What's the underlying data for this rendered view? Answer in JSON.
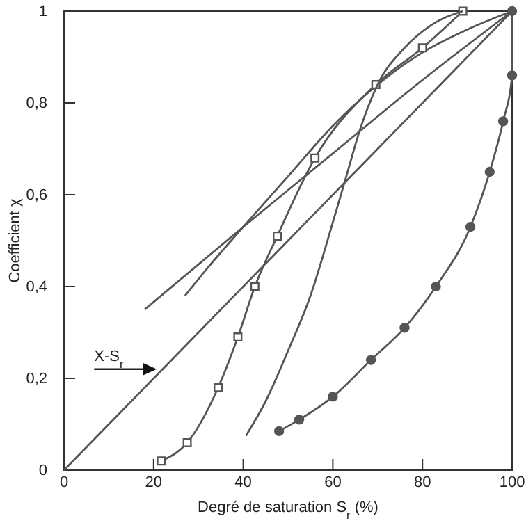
{
  "chart_data": {
    "type": "line",
    "xlabel": "Degré de saturation S$_{r}$ (%)",
    "ylabel": "Coefficient χ",
    "xlim": [
      0,
      100
    ],
    "ylim": [
      0,
      1
    ],
    "xticks": [
      0,
      20,
      40,
      60,
      80,
      100
    ],
    "yticks": [
      {
        "value": 0,
        "label": "0"
      },
      {
        "value": 0.2,
        "label": "0,2"
      },
      {
        "value": 0.4,
        "label": "0,4"
      },
      {
        "value": 0.6,
        "label": "0,6"
      },
      {
        "value": 0.8,
        "label": "0,8"
      },
      {
        "value": 1,
        "label": "1"
      }
    ],
    "grid": false,
    "annotations": [
      {
        "text": "X-S$_{r}$",
        "x": 21,
        "y": 0.22
      }
    ],
    "series": [
      {
        "color": "#555555",
        "x": [
          0,
          100
        ],
        "values": [
          0,
          1
        ]
      },
      {
        "color": "#555555",
        "x": [
          18,
          40,
          60,
          80,
          100
        ],
        "values": [
          0.35,
          0.53,
          0.69,
          0.85,
          1
        ]
      },
      {
        "color": "#555555",
        "x": [
          27,
          32,
          40,
          50,
          60,
          70,
          80,
          90,
          100
        ],
        "values": [
          0.38,
          0.44,
          0.53,
          0.64,
          0.75,
          0.84,
          0.91,
          0.96,
          1
        ]
      },
      {
        "color": "#555555",
        "marker": "square",
        "x": [
          21.7,
          27.5,
          34.4,
          38.8,
          42.6,
          47.6,
          56,
          69.6,
          80,
          89
        ],
        "values": [
          0.02,
          0.06,
          0.18,
          0.29,
          0.4,
          0.51,
          0.68,
          0.84,
          0.92,
          1
        ]
      },
      {
        "color": "#555555",
        "x": [
          40.6,
          45,
          50,
          55,
          60,
          63,
          66,
          70,
          76,
          82,
          89
        ],
        "values": [
          0.075,
          0.15,
          0.26,
          0.38,
          0.54,
          0.64,
          0.74,
          0.84,
          0.92,
          0.97,
          1
        ]
      },
      {
        "color": "#555555",
        "marker": "circle",
        "x": [
          48,
          52.5,
          60,
          68.5,
          76,
          83,
          90.7,
          95,
          98,
          100,
          100
        ],
        "values": [
          0.085,
          0.11,
          0.16,
          0.24,
          0.31,
          0.4,
          0.53,
          0.65,
          0.76,
          0.86,
          1
        ]
      }
    ]
  }
}
